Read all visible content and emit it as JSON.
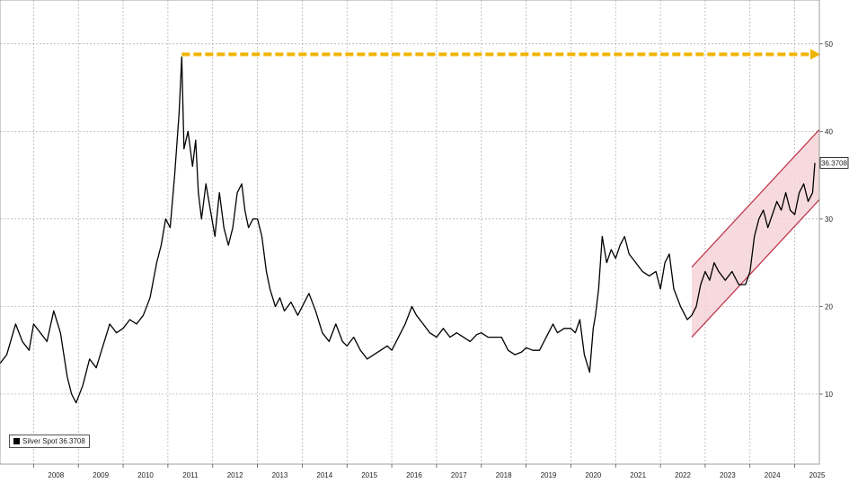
{
  "chart_data": {
    "type": "line",
    "title": "",
    "xlabel": "",
    "ylabel": "",
    "x_ticks": [
      "2008",
      "2009",
      "2010",
      "2011",
      "2012",
      "2013",
      "2014",
      "2015",
      "2016",
      "2017",
      "2018",
      "2019",
      "2020",
      "2021",
      "2022",
      "2023",
      "2024",
      "2025"
    ],
    "y_ticks": [
      10,
      20,
      30,
      40,
      50
    ],
    "xlim": [
      2007.25,
      2025.55
    ],
    "ylim": [
      2,
      55
    ],
    "grid": true,
    "last_value_label": "36.3708",
    "legend": {
      "label": "Silver Spot 36.3708",
      "placement": "bottom-left"
    },
    "series": [
      {
        "name": "Silver Spot",
        "color": "#000000",
        "x": [
          2007.25,
          2007.4,
          2007.6,
          2007.75,
          2007.9,
          2008.0,
          2008.15,
          2008.3,
          2008.45,
          2008.6,
          2008.75,
          2008.85,
          2008.95,
          2009.1,
          2009.25,
          2009.4,
          2009.55,
          2009.7,
          2009.85,
          2010.0,
          2010.15,
          2010.3,
          2010.45,
          2010.6,
          2010.75,
          2010.85,
          2010.95,
          2011.05,
          2011.15,
          2011.25,
          2011.31,
          2011.36,
          2011.45,
          2011.55,
          2011.62,
          2011.68,
          2011.75,
          2011.85,
          2011.95,
          2012.05,
          2012.15,
          2012.25,
          2012.35,
          2012.45,
          2012.55,
          2012.65,
          2012.72,
          2012.8,
          2012.9,
          2013.0,
          2013.1,
          2013.2,
          2013.28,
          2013.4,
          2013.5,
          2013.6,
          2013.75,
          2013.9,
          2014.0,
          2014.15,
          2014.3,
          2014.45,
          2014.6,
          2014.75,
          2014.9,
          2015.0,
          2015.15,
          2015.3,
          2015.45,
          2015.6,
          2015.75,
          2015.9,
          2016.0,
          2016.15,
          2016.3,
          2016.45,
          2016.55,
          2016.7,
          2016.85,
          2017.0,
          2017.15,
          2017.3,
          2017.45,
          2017.6,
          2017.75,
          2017.9,
          2018.0,
          2018.15,
          2018.3,
          2018.45,
          2018.6,
          2018.75,
          2018.9,
          2019.0,
          2019.15,
          2019.3,
          2019.45,
          2019.6,
          2019.7,
          2019.85,
          2020.0,
          2020.1,
          2020.2,
          2020.3,
          2020.42,
          2020.5,
          2020.55,
          2020.62,
          2020.7,
          2020.8,
          2020.9,
          2021.0,
          2021.1,
          2021.2,
          2021.3,
          2021.45,
          2021.6,
          2021.75,
          2021.9,
          2022.0,
          2022.1,
          2022.2,
          2022.3,
          2022.45,
          2022.6,
          2022.7,
          2022.8,
          2022.9,
          2023.0,
          2023.1,
          2023.2,
          2023.3,
          2023.45,
          2023.6,
          2023.75,
          2023.9,
          2024.0,
          2024.1,
          2024.2,
          2024.3,
          2024.4,
          2024.5,
          2024.6,
          2024.7,
          2024.8,
          2024.9,
          2025.0,
          2025.1,
          2025.2,
          2025.3,
          2025.4,
          2025.45
        ],
        "y": [
          13.5,
          14.5,
          18,
          16,
          15,
          18,
          17,
          16,
          19.5,
          17,
          12,
          10,
          9,
          11,
          14,
          13,
          15.5,
          18,
          17,
          17.5,
          18.5,
          18,
          19,
          21,
          25,
          27,
          30,
          29,
          35,
          42,
          48.5,
          38,
          40,
          36,
          39,
          33,
          30,
          34,
          31,
          28,
          33,
          29,
          27,
          29,
          33,
          34,
          31,
          29,
          30,
          30,
          28,
          24,
          22,
          20,
          21,
          19.5,
          20.5,
          19,
          20,
          21.5,
          19.5,
          17,
          16,
          18,
          16,
          15.5,
          16.5,
          15,
          14,
          14.5,
          15,
          15.5,
          15,
          16.5,
          18,
          20,
          19,
          18,
          17,
          16.5,
          17.5,
          16.5,
          17,
          16.5,
          16,
          16.8,
          17,
          16.5,
          16.5,
          16.5,
          15,
          14.5,
          14.8,
          15.3,
          15,
          15,
          16.5,
          18,
          17,
          17.5,
          17.5,
          17,
          18.5,
          14.5,
          12.5,
          17.5,
          19,
          22,
          28,
          25,
          26.5,
          25.5,
          27,
          28,
          26,
          25,
          24,
          23.5,
          24,
          22,
          25,
          26,
          22,
          20,
          18.5,
          19,
          20,
          22.5,
          24,
          23,
          25,
          24,
          23,
          24,
          22.5,
          22.5,
          24,
          28,
          30,
          31,
          29,
          30.5,
          32,
          31,
          33,
          31,
          30.5,
          33,
          34,
          32,
          33,
          36.4
        ]
      }
    ],
    "annotations": [
      {
        "type": "dashed-arrow",
        "color": "#f0b400",
        "from": [
          2011.31,
          48.8
        ],
        "to": [
          2025.55,
          48.8
        ]
      },
      {
        "type": "channel",
        "color": "#c0394b",
        "fill": "#f4d3d8",
        "upper": [
          [
            2022.7,
            24.5
          ],
          [
            2025.55,
            40.2
          ]
        ],
        "lower": [
          [
            2022.7,
            16.5
          ],
          [
            2025.55,
            32.2
          ]
        ]
      }
    ]
  }
}
